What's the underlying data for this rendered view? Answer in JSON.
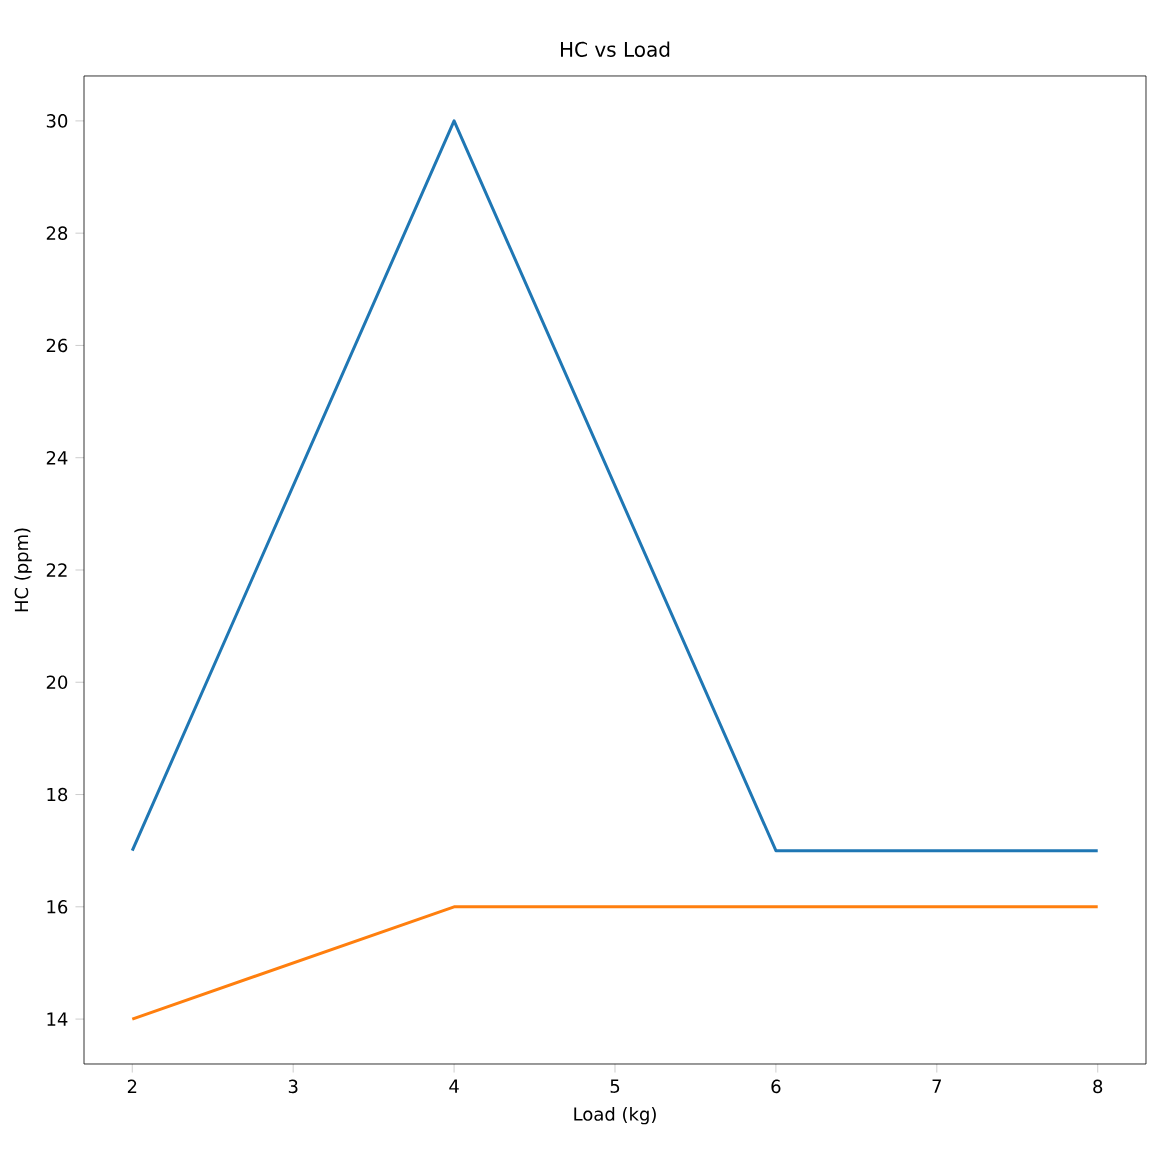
{
  "chart_data": {
    "type": "line",
    "title": "HC vs Load",
    "xlabel": "Load (kg)",
    "ylabel": "HC (ppm)",
    "x": [
      2,
      4,
      6,
      8
    ],
    "series": [
      {
        "color": "#1f77b4",
        "values": [
          17,
          30,
          17,
          17
        ]
      },
      {
        "color": "#ff7f0e",
        "values": [
          14,
          16,
          16,
          16
        ]
      }
    ],
    "xlim": [
      1.7,
      8.3
    ],
    "ylim": [
      13.2,
      30.8
    ],
    "xticks": [
      2,
      3,
      4,
      5,
      6,
      7,
      8
    ],
    "yticks": [
      14,
      16,
      18,
      20,
      22,
      24,
      26,
      28,
      30
    ],
    "grid": false,
    "marker": "none",
    "line_style": "solid"
  }
}
